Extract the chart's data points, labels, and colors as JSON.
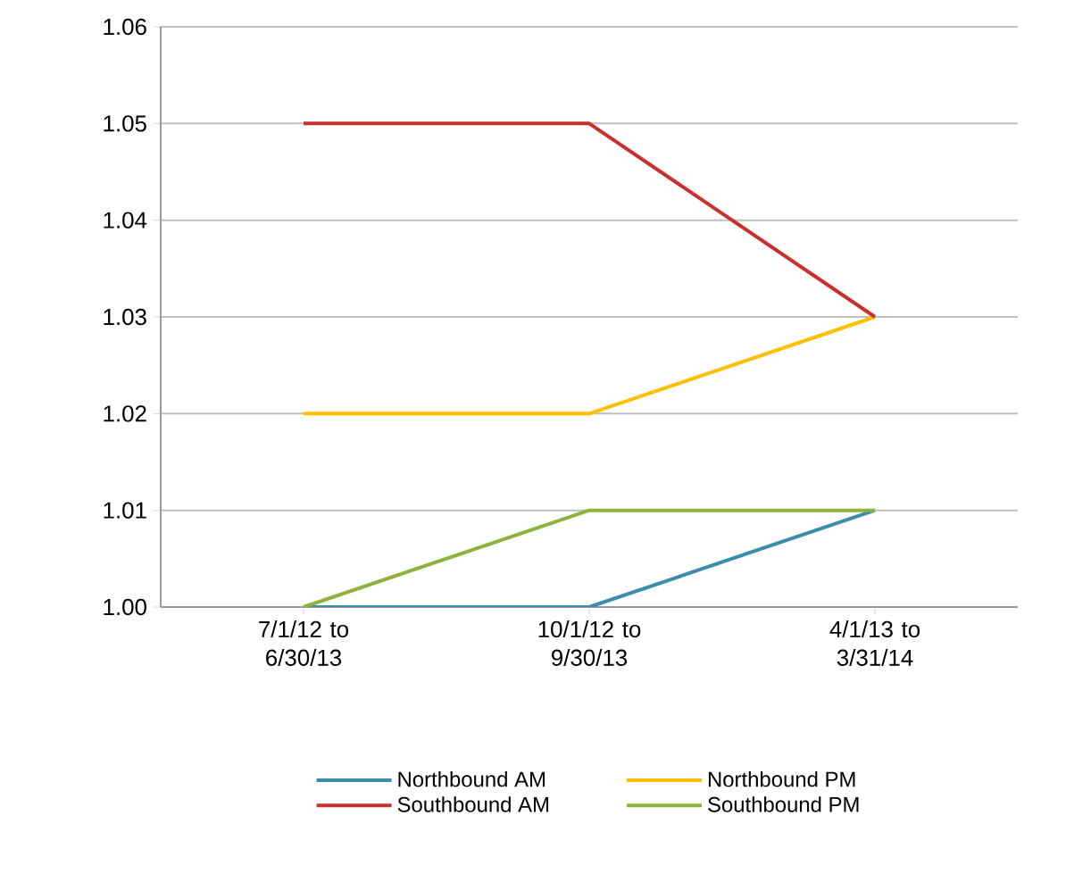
{
  "chart_data": {
    "type": "line",
    "categories": [
      "7/1/12 to 6/30/13",
      "10/1/12 to 9/30/13",
      "4/1/13 to 3/31/14"
    ],
    "series": [
      {
        "name": "Northbound AM",
        "color": "#3a8dad",
        "values": [
          1.0,
          1.0,
          1.01
        ]
      },
      {
        "name": "Northbound PM",
        "color": "#ffc000",
        "values": [
          1.02,
          1.02,
          1.03
        ]
      },
      {
        "name": "Southbound AM",
        "color": "#c9302c",
        "values": [
          1.05,
          1.05,
          1.03
        ]
      },
      {
        "name": "Southbound PM",
        "color": "#8db33a",
        "values": [
          1.0,
          1.01,
          1.01
        ]
      }
    ],
    "ylim": [
      1.0,
      1.06
    ],
    "yticks": [
      {
        "value": 1.0,
        "label": "1.00"
      },
      {
        "value": 1.01,
        "label": "1.01"
      },
      {
        "value": 1.02,
        "label": "1.02"
      },
      {
        "value": 1.03,
        "label": "1.03"
      },
      {
        "value": 1.04,
        "label": "1.04"
      },
      {
        "value": 1.05,
        "label": "1.05"
      },
      {
        "value": 1.06,
        "label": "1.06"
      }
    ],
    "grid": "y",
    "legend": "bottom",
    "marker": "none",
    "line_style": "solid"
  }
}
